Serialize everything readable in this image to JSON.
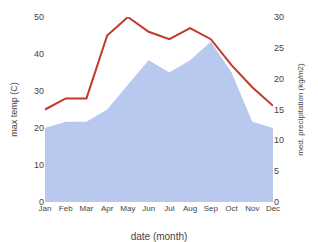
{
  "chart_data": {
    "type": "line",
    "categories": [
      "Jan",
      "Feb",
      "Mar",
      "Apr",
      "May",
      "Jun",
      "Jul",
      "Aug",
      "Sep",
      "Oct",
      "Nov",
      "Dec"
    ],
    "series": [
      {
        "type": "area",
        "axis": "y2",
        "color": "#b8c8ee",
        "values": [
          12,
          13,
          13,
          15,
          19,
          23,
          21,
          23,
          26,
          21,
          13,
          12
        ]
      },
      {
        "type": "line",
        "color": "#c0392b",
        "values": [
          25,
          28,
          28,
          45,
          50,
          46,
          44,
          47,
          44,
          37,
          31,
          26
        ]
      }
    ],
    "xlabel": "date (month)",
    "ylabel": "max temp (C)",
    "y2label": "med. precipitation (kg/m2)",
    "ylim": [
      0,
      50
    ],
    "yticks": [
      0,
      10,
      20,
      30,
      40,
      50
    ],
    "y2lim": [
      0,
      30
    ],
    "y2ticks": [
      0,
      5,
      10,
      15,
      20,
      25,
      30
    ],
    "grid": false
  }
}
